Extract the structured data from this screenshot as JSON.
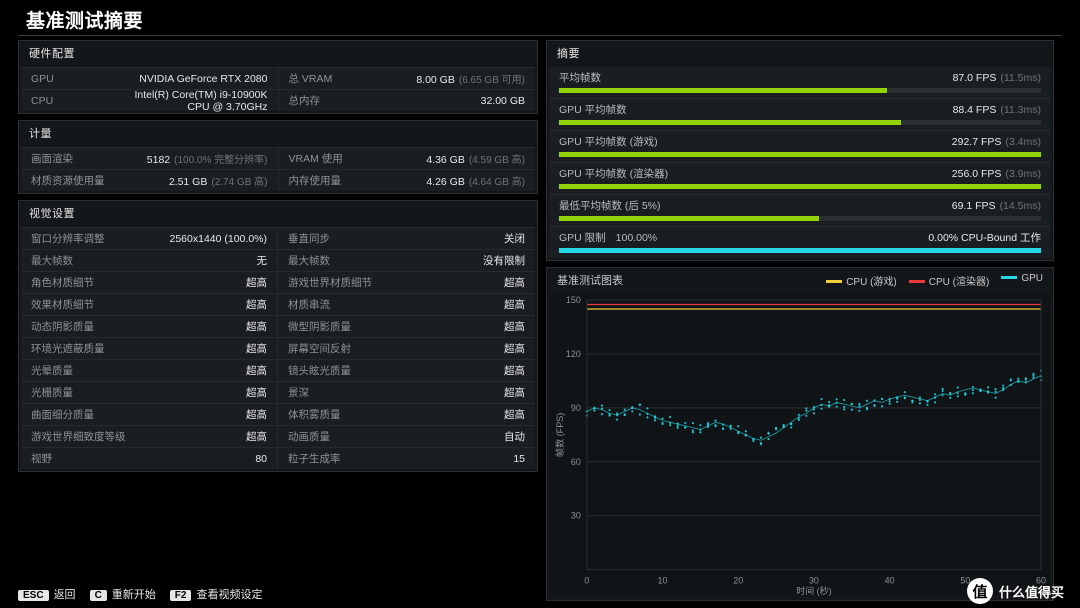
{
  "title": "基准测试摘要",
  "hw": {
    "title": "硬件配置",
    "rows": [
      [
        {
          "label": "GPU",
          "value": "NVIDIA GeForce RTX 2080",
          "sub": ""
        },
        {
          "label": "总 VRAM",
          "value": "8.00 GB",
          "sub": "(6.65 GB 可用)"
        }
      ],
      [
        {
          "label": "CPU",
          "value": "Intel(R) Core(TM) i9-10900K CPU @ 3.70GHz",
          "sub": ""
        },
        {
          "label": "总内存",
          "value": "32.00 GB",
          "sub": ""
        }
      ]
    ]
  },
  "metrics": {
    "title": "计量",
    "rows": [
      [
        {
          "label": "画面渲染",
          "value": "5182",
          "sub": "(100.0% 完整分辨率)"
        },
        {
          "label": "VRAM 使用",
          "value": "4.36 GB",
          "sub": "(4.59 GB 高)"
        }
      ],
      [
        {
          "label": "材质资源使用量",
          "value": "2.51 GB",
          "sub": "(2.74 GB 高)"
        },
        {
          "label": "内存使用量",
          "value": "4.26 GB",
          "sub": "(4.64 GB 高)"
        }
      ]
    ]
  },
  "visual": {
    "title": "视觉设置",
    "pairs": [
      {
        "label": "窗口分辨率调整",
        "value": "2560x1440 (100.0%)"
      },
      {
        "label": "垂直同步",
        "value": "关闭"
      },
      {
        "label": "最大帧数",
        "value": "无"
      },
      {
        "label": "最大帧数",
        "value": "没有限制"
      },
      {
        "label": "角色材质细节",
        "value": "超高"
      },
      {
        "label": "游戏世界材质细节",
        "value": "超高"
      },
      {
        "label": "效果材质细节",
        "value": "超高"
      },
      {
        "label": "材质串流",
        "value": "超高"
      },
      {
        "label": "动态阴影质量",
        "value": "超高"
      },
      {
        "label": "微型阴影质量",
        "value": "超高"
      },
      {
        "label": "环境光遮蔽质量",
        "value": "超高"
      },
      {
        "label": "屏幕空间反射",
        "value": "超高"
      },
      {
        "label": "光晕质量",
        "value": "超高"
      },
      {
        "label": "镜头眩光质量",
        "value": "超高"
      },
      {
        "label": "光栅质量",
        "value": "超高"
      },
      {
        "label": "景深",
        "value": "超高"
      },
      {
        "label": "曲面细分质量",
        "value": "超高"
      },
      {
        "label": "体积雾质量",
        "value": "超高"
      },
      {
        "label": "游戏世界细致度等级",
        "value": "超高"
      },
      {
        "label": "动画质量",
        "value": "自动"
      },
      {
        "label": "视野",
        "value": "80"
      },
      {
        "label": "粒子生成率",
        "value": "15"
      }
    ]
  },
  "summary": {
    "title": "摘要",
    "bars": [
      {
        "label": "平均帧数",
        "value": "87.0 FPS",
        "sub": "(11.5ms)",
        "pct": 68,
        "color": "#93d500"
      },
      {
        "label": "GPU 平均帧数",
        "value": "88.4 FPS",
        "sub": "(11.3ms)",
        "pct": 71,
        "color": "#93d500"
      },
      {
        "label": "GPU 平均帧数 (游戏)",
        "value": "292.7 FPS",
        "sub": "(3.4ms)",
        "pct": 100,
        "color": "#93d500"
      },
      {
        "label": "GPU 平均帧数 (渲染器)",
        "value": "256.0 FPS",
        "sub": "(3.9ms)",
        "pct": 100,
        "color": "#93d500"
      },
      {
        "label": "最低平均帧数 (后 5%)",
        "value": "69.1 FPS",
        "sub": "(14.5ms)",
        "pct": 54,
        "color": "#93d500"
      }
    ],
    "gpu_limit_label": "GPU 限制",
    "gpu_limit_left": "100.00%",
    "gpu_limit_right": "0.00% CPU-Bound 工作",
    "gpu_limit_color": "#26d7e5",
    "gpu_limit_pct": 100
  },
  "chart": {
    "title": "基准测试图表",
    "legend": [
      {
        "label": "CPU (游戏)",
        "color": "#f2ce3a"
      },
      {
        "label": "CPU (渲染器)",
        "color": "#e83a3a"
      },
      {
        "label": "GPU",
        "color": "#26d7e5"
      }
    ],
    "ylabel": "帧数 (FPS)",
    "xlabel": "时间 (秒)",
    "xlim": [
      0,
      60
    ],
    "ylim": [
      0,
      150
    ],
    "xticks": [
      0,
      10,
      20,
      30,
      40,
      50,
      60
    ],
    "yticks": [
      30,
      60,
      90,
      120,
      150
    ],
    "bg": "#101416",
    "grid": "#2a2f33",
    "text": "#8d9297",
    "cpu_game_band": [
      142,
      148
    ],
    "cpu_render_band": [
      146,
      149
    ],
    "gpu_series": [
      88,
      90,
      89,
      87,
      86,
      88,
      90,
      89,
      87,
      85,
      83,
      82,
      81,
      80,
      79,
      78,
      80,
      82,
      81,
      79,
      77,
      75,
      73,
      72,
      74,
      76,
      79,
      82,
      85,
      87,
      90,
      92,
      91,
      93,
      92,
      91,
      90,
      92,
      94,
      93,
      95,
      96,
      97,
      96,
      95,
      94,
      96,
      98,
      97,
      99,
      100,
      101,
      100,
      99,
      98,
      100,
      103,
      105,
      104,
      106,
      108
    ],
    "gpu_jitter": 6
  },
  "footer": {
    "keys": [
      {
        "cap": "ESC",
        "label": "返回"
      },
      {
        "cap": "C",
        "label": "重新开始"
      },
      {
        "cap": "F2",
        "label": "查看视频设定"
      }
    ]
  },
  "watermark": {
    "icon": "值",
    "text": "什么值得买"
  }
}
